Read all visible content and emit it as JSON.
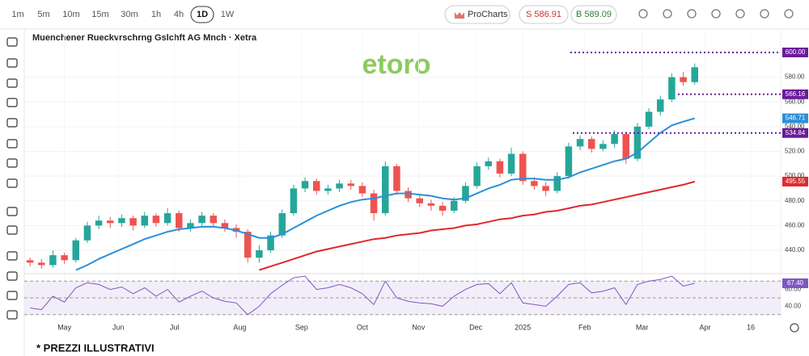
{
  "toolbar": {
    "timeframes": [
      "1m",
      "5m",
      "10m",
      "15m",
      "30m",
      "1h",
      "4h",
      "1D",
      "1W"
    ],
    "selected": "1D",
    "procharts": "ProCharts",
    "sell": "S 586.91",
    "buy": "B 589.09"
  },
  "chart_data": {
    "type": "candlestick",
    "title": "Muenchener Rueckvrschrng Gslchft AG Mnch · Xetra",
    "watermark": "etoro",
    "up_color": "#26a69a",
    "down_color": "#ef5350",
    "candles": [
      [
        432,
        434,
        427,
        430
      ],
      [
        430,
        433,
        425,
        428
      ],
      [
        428,
        440,
        426,
        436
      ],
      [
        436,
        438,
        429,
        432
      ],
      [
        432,
        450,
        430,
        448
      ],
      [
        448,
        463,
        446,
        460
      ],
      [
        460,
        468,
        457,
        464
      ],
      [
        464,
        467,
        458,
        462
      ],
      [
        462,
        469,
        459,
        466
      ],
      [
        466,
        468,
        456,
        460
      ],
      [
        460,
        471,
        458,
        468
      ],
      [
        468,
        470,
        459,
        462
      ],
      [
        462,
        474,
        460,
        470
      ],
      [
        470,
        472,
        455,
        458
      ],
      [
        458,
        465,
        455,
        462
      ],
      [
        462,
        471,
        460,
        468
      ],
      [
        468,
        470,
        459,
        462
      ],
      [
        462,
        465,
        455,
        458
      ],
      [
        458,
        461,
        450,
        455
      ],
      [
        455,
        457,
        430,
        434
      ],
      [
        434,
        444,
        430,
        440
      ],
      [
        440,
        455,
        438,
        452
      ],
      [
        452,
        473,
        450,
        470
      ],
      [
        470,
        493,
        468,
        490
      ],
      [
        490,
        499,
        487,
        496
      ],
      [
        496,
        498,
        485,
        488
      ],
      [
        488,
        493,
        485,
        490
      ],
      [
        490,
        497,
        487,
        494
      ],
      [
        494,
        497,
        489,
        492
      ],
      [
        492,
        495,
        483,
        486
      ],
      [
        486,
        489,
        464,
        470
      ],
      [
        470,
        512,
        468,
        508
      ],
      [
        508,
        510,
        485,
        488
      ],
      [
        488,
        491,
        479,
        482
      ],
      [
        482,
        485,
        475,
        478
      ],
      [
        478,
        481,
        472,
        476
      ],
      [
        476,
        479,
        468,
        472
      ],
      [
        472,
        483,
        470,
        480
      ],
      [
        480,
        495,
        478,
        492
      ],
      [
        492,
        511,
        490,
        508
      ],
      [
        508,
        515,
        505,
        512
      ],
      [
        512,
        514,
        499,
        502
      ],
      [
        502,
        523,
        500,
        518
      ],
      [
        518,
        520,
        493,
        496
      ],
      [
        496,
        499,
        489,
        492
      ],
      [
        492,
        495,
        484,
        488
      ],
      [
        488,
        503,
        486,
        500
      ],
      [
        500,
        527,
        498,
        524
      ],
      [
        524,
        533,
        521,
        530
      ],
      [
        530,
        532,
        519,
        522
      ],
      [
        522,
        529,
        520,
        526
      ],
      [
        526,
        537,
        523,
        534
      ],
      [
        534,
        536,
        510,
        514
      ],
      [
        514,
        543,
        512,
        540
      ],
      [
        540,
        555,
        538,
        552
      ],
      [
        552,
        565,
        549,
        562
      ],
      [
        562,
        583,
        560,
        580
      ],
      [
        580,
        584,
        573,
        576
      ],
      [
        576,
        591,
        574,
        588
      ]
    ],
    "moving_averages": [
      {
        "color": "#2b8fd9",
        "values": [
          null,
          null,
          null,
          null,
          424,
          428,
          433,
          437,
          441,
          445,
          449,
          452,
          455,
          457,
          458,
          459,
          459,
          458,
          456,
          453,
          450,
          450,
          453,
          458,
          463,
          468,
          472,
          476,
          479,
          481,
          482,
          484,
          486,
          486,
          485,
          484,
          482,
          481,
          482,
          486,
          490,
          493,
          497,
          498,
          498,
          497,
          497,
          499,
          503,
          506,
          509,
          512,
          514,
          519,
          527,
          535,
          541,
          544,
          546.71
        ]
      },
      {
        "color": "#e0282e",
        "values": [
          null,
          null,
          null,
          null,
          null,
          null,
          null,
          null,
          null,
          null,
          null,
          null,
          null,
          null,
          null,
          null,
          null,
          null,
          null,
          null,
          424,
          427,
          430,
          433,
          436,
          439,
          441,
          443,
          445,
          447,
          449,
          450,
          452,
          453,
          454,
          456,
          457,
          458,
          460,
          461,
          463,
          465,
          466,
          468,
          469,
          471,
          472,
          474,
          476,
          477,
          479,
          481,
          483,
          485,
          487,
          489,
          491,
          493,
          495.55
        ]
      }
    ],
    "price_lines": [
      {
        "value": 600,
        "label": "600.00"
      },
      566.16,
      534.84
    ],
    "price_line_color": "#6a1b9a",
    "xlim": [
      0,
      66
    ],
    "xticks": [
      {
        "value": 3.5,
        "label": "May"
      },
      {
        "value": 8.2,
        "label": "Jun"
      },
      {
        "value": 13.1,
        "label": "Jul"
      },
      {
        "value": 18.8,
        "label": "Aug"
      },
      {
        "value": 24.2,
        "label": "Sep"
      },
      {
        "value": 29.5,
        "label": "Oct"
      },
      {
        "value": 34.4,
        "label": "Nov"
      },
      {
        "value": 39.4,
        "label": "Dec"
      },
      {
        "value": 43.5,
        "label": "2025"
      },
      {
        "value": 48.9,
        "label": "Feb"
      },
      {
        "value": 53.9,
        "label": "Mar"
      },
      {
        "value": 59.4,
        "label": "Apr"
      },
      {
        "value": 63.4,
        "label": "16"
      }
    ],
    "ylim": [
      423.7,
      617.6
    ],
    "yticks": [
      {
        "value": 440,
        "label": "440.00"
      },
      {
        "value": 460,
        "label": "460.00"
      },
      {
        "value": 480,
        "label": "480.00"
      },
      {
        "value": 500,
        "label": "500.00"
      },
      {
        "value": 520,
        "label": "520.00"
      },
      {
        "value": 540,
        "label": "540.00"
      },
      {
        "value": 560,
        "label": "560.00"
      },
      {
        "value": 580,
        "label": "580.00"
      }
    ],
    "rsi": {
      "color": "#7e57c2",
      "values": [
        38,
        36,
        52,
        45,
        62,
        68,
        66,
        60,
        63,
        55,
        62,
        52,
        60,
        45,
        52,
        58,
        50,
        46,
        44,
        30,
        40,
        55,
        65,
        74,
        76,
        60,
        62,
        66,
        62,
        55,
        42,
        70,
        50,
        46,
        44,
        43,
        40,
        52,
        60,
        66,
        67,
        55,
        68,
        44,
        42,
        40,
        52,
        66,
        68,
        56,
        58,
        62,
        42,
        66,
        70,
        72,
        76,
        64,
        67.4
      ],
      "current": {
        "value": 67.4,
        "label": "67.40"
      },
      "ylim": [
        25,
        76
      ],
      "yticks": [
        {
          "value": 60,
          "label": "60.00"
        },
        {
          "value": 40,
          "label": "40.00"
        }
      ],
      "guides": [
        70,
        50,
        30
      ]
    },
    "footnote": "* PREZZI ILLUSTRATIVI"
  }
}
